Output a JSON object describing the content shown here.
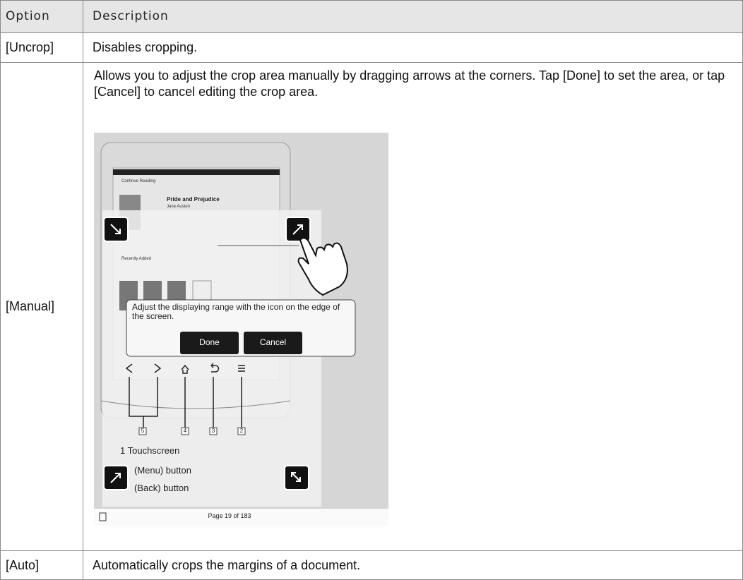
{
  "table": {
    "headers": [
      "Option",
      "Description"
    ],
    "rows": [
      [
        "[Uncrop]",
        "Disables cropping."
      ],
      [
        "[Manual]",
        "Allows you to adjust the crop area manually by dragging arrows at the corners. Tap [Done] to set the area, or tap [Cancel] to cancel editing the crop area."
      ],
      [
        "[Auto]",
        "Automatically crops the margins of a document."
      ]
    ]
  },
  "screenshot": {
    "top_title": "Continue Reading",
    "book_title": "Pride and Prejudice",
    "author": "Jane Austen",
    "section": "Recently Added",
    "dialog_text": "Adjust the displaying range with the icon on the edge of the screen.",
    "buttons": [
      "Done",
      "Cancel"
    ],
    "callouts": [
      "5",
      "4",
      "3",
      "2"
    ],
    "legend": [
      "1 Touchscreen",
      "(Menu) button",
      "(Back) button"
    ],
    "footer": "Page 19 of 183"
  }
}
